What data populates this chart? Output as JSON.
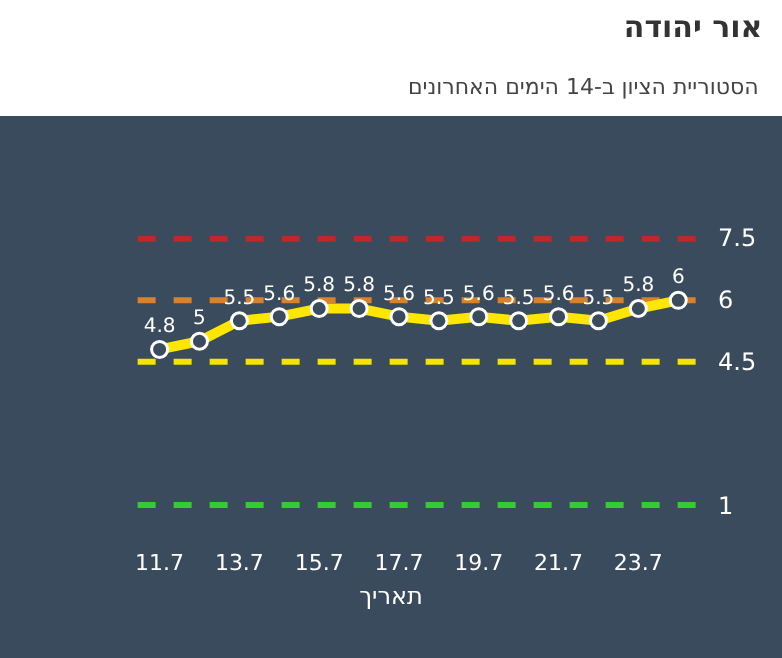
{
  "chart_data": {
    "type": "line",
    "title": "אור יהודה",
    "subtitle": "הסטוריית הציון ב-14 הימים האחרונים",
    "xlabel": "תאריך",
    "categories": [
      "11.7",
      null,
      "13.7",
      null,
      "15.7",
      null,
      "17.7",
      null,
      "19.7",
      null,
      "21.7",
      null,
      "23.7",
      null
    ],
    "series": [
      {
        "color": "#ffe600",
        "values": [
          4.8,
          5,
          5.5,
          5.6,
          5.8,
          5.8,
          5.6,
          5.5,
          5.6,
          5.5,
          5.6,
          5.5,
          5.8,
          6
        ]
      }
    ],
    "ylim": [
      0,
      10.5
    ],
    "ref_lines": [
      {
        "axis": "y",
        "value": 7.5,
        "label": "7.5",
        "color": "#c0272d",
        "line_style": "dashed"
      },
      {
        "axis": "y",
        "value": 6,
        "label": "6",
        "color": "#d9822b",
        "line_style": "dashed"
      },
      {
        "axis": "y",
        "value": 4.5,
        "label": "4.5",
        "color": "#f5e400",
        "line_style": "dashed"
      },
      {
        "axis": "y",
        "value": 1,
        "label": "1",
        "color": "#33cc33",
        "line_style": "dashed"
      }
    ],
    "data_labels": true,
    "marker": "circle",
    "grid": false,
    "tick_labels": "x"
  }
}
